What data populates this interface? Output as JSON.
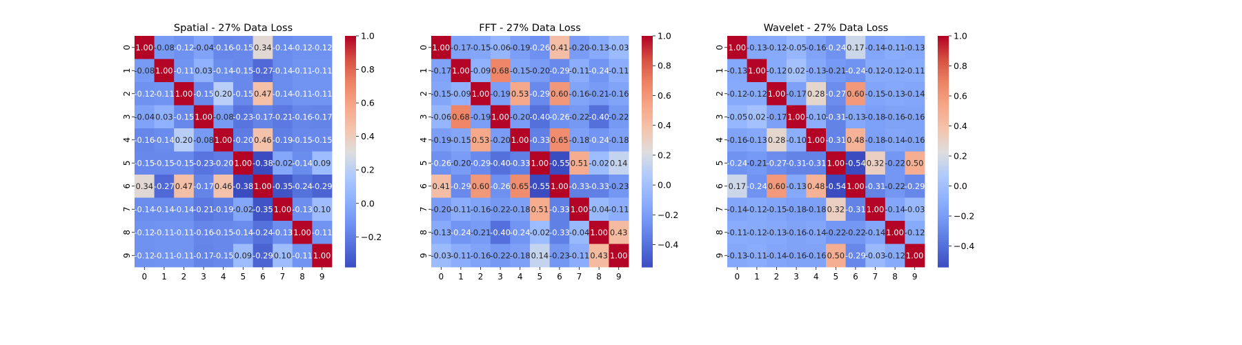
{
  "chart_data": [
    {
      "type": "heatmap",
      "title": "Spatial - 27% Data Loss",
      "x": [
        "0",
        "1",
        "2",
        "3",
        "4",
        "5",
        "6",
        "7",
        "8",
        "9"
      ],
      "y": [
        "0",
        "1",
        "2",
        "3",
        "4",
        "5",
        "6",
        "7",
        "8",
        "9"
      ],
      "values": [
        [
          1.0,
          -0.08,
          -0.12,
          -0.04,
          -0.16,
          -0.15,
          0.34,
          -0.14,
          -0.12,
          -0.12
        ],
        [
          -0.08,
          1.0,
          -0.11,
          0.03,
          -0.14,
          -0.15,
          -0.27,
          -0.14,
          -0.11,
          -0.11
        ],
        [
          -0.12,
          -0.11,
          1.0,
          -0.15,
          0.2,
          -0.15,
          0.47,
          -0.14,
          -0.11,
          -0.11
        ],
        [
          -0.04,
          0.03,
          -0.15,
          1.0,
          -0.08,
          -0.23,
          -0.17,
          -0.21,
          -0.16,
          -0.17
        ],
        [
          -0.16,
          -0.14,
          0.2,
          -0.08,
          1.0,
          -0.2,
          0.46,
          -0.19,
          -0.15,
          -0.15
        ],
        [
          -0.15,
          -0.15,
          -0.15,
          -0.23,
          -0.2,
          1.0,
          -0.38,
          -0.02,
          -0.14,
          0.09
        ],
        [
          0.34,
          -0.27,
          0.47,
          -0.17,
          0.46,
          -0.38,
          1.0,
          -0.35,
          -0.24,
          -0.29
        ],
        [
          -0.14,
          -0.14,
          -0.14,
          -0.21,
          -0.19,
          -0.02,
          -0.35,
          1.0,
          -0.13,
          0.1
        ],
        [
          -0.12,
          -0.11,
          -0.11,
          -0.16,
          -0.15,
          -0.14,
          -0.24,
          -0.13,
          1.0,
          -0.11
        ],
        [
          -0.12,
          -0.11,
          -0.11,
          -0.17,
          -0.15,
          0.09,
          -0.29,
          0.1,
          -0.11,
          1.0
        ]
      ],
      "vmin": -0.38,
      "vmax": 1.0,
      "colorbar_ticks": [
        "1.0",
        "0.8",
        "0.6",
        "0.4",
        "0.2",
        "0.0",
        "−0.2"
      ],
      "colorbar_tick_values": [
        1.0,
        0.8,
        0.6,
        0.4,
        0.2,
        0.0,
        -0.2
      ]
    },
    {
      "type": "heatmap",
      "title": "FFT - 27% Data Loss",
      "x": [
        "0",
        "1",
        "2",
        "3",
        "4",
        "5",
        "6",
        "7",
        "8",
        "9"
      ],
      "y": [
        "0",
        "1",
        "2",
        "3",
        "4",
        "5",
        "6",
        "7",
        "8",
        "9"
      ],
      "values": [
        [
          1.0,
          -0.17,
          -0.15,
          -0.06,
          -0.19,
          -0.26,
          0.41,
          -0.2,
          -0.13,
          -0.03
        ],
        [
          -0.17,
          1.0,
          -0.09,
          0.68,
          -0.15,
          -0.2,
          -0.29,
          -0.11,
          -0.24,
          -0.11
        ],
        [
          -0.15,
          -0.09,
          1.0,
          -0.19,
          0.53,
          -0.29,
          0.6,
          -0.16,
          -0.21,
          -0.16
        ],
        [
          -0.06,
          0.68,
          -0.19,
          1.0,
          -0.2,
          -0.4,
          -0.26,
          -0.22,
          -0.4,
          -0.22
        ],
        [
          -0.19,
          -0.15,
          0.53,
          -0.2,
          1.0,
          -0.33,
          0.65,
          -0.18,
          -0.24,
          -0.18
        ],
        [
          -0.26,
          -0.2,
          -0.29,
          -0.4,
          -0.33,
          1.0,
          -0.55,
          0.51,
          -0.02,
          0.14
        ],
        [
          0.41,
          -0.29,
          0.6,
          -0.26,
          0.65,
          -0.55,
          1.0,
          -0.33,
          -0.33,
          -0.23
        ],
        [
          -0.2,
          -0.11,
          -0.16,
          -0.22,
          -0.18,
          0.51,
          -0.33,
          1.0,
          -0.04,
          -0.11
        ],
        [
          -0.13,
          -0.24,
          -0.21,
          -0.4,
          -0.24,
          -0.02,
          -0.33,
          -0.04,
          1.0,
          0.43
        ],
        [
          -0.03,
          -0.11,
          -0.16,
          -0.22,
          -0.18,
          0.14,
          -0.23,
          -0.11,
          0.43,
          1.0
        ]
      ],
      "vmin": -0.55,
      "vmax": 1.0,
      "colorbar_ticks": [
        "1.0",
        "0.8",
        "0.6",
        "0.4",
        "0.2",
        "0.0",
        "−0.2",
        "−0.4"
      ],
      "colorbar_tick_values": [
        1.0,
        0.8,
        0.6,
        0.4,
        0.2,
        0.0,
        -0.2,
        -0.4
      ]
    },
    {
      "type": "heatmap",
      "title": "Wavelet - 27% Data Loss",
      "x": [
        "0",
        "1",
        "2",
        "3",
        "4",
        "5",
        "6",
        "7",
        "8",
        "9"
      ],
      "y": [
        "0",
        "1",
        "2",
        "3",
        "4",
        "5",
        "6",
        "7",
        "8",
        "9"
      ],
      "values": [
        [
          1.0,
          -0.13,
          -0.12,
          -0.05,
          -0.16,
          -0.24,
          0.17,
          -0.14,
          -0.11,
          -0.13
        ],
        [
          -0.13,
          1.0,
          -0.12,
          0.02,
          -0.13,
          -0.21,
          -0.24,
          -0.12,
          -0.12,
          -0.11
        ],
        [
          -0.12,
          -0.12,
          1.0,
          -0.17,
          0.28,
          -0.27,
          0.6,
          -0.15,
          -0.13,
          -0.14
        ],
        [
          -0.05,
          0.02,
          -0.17,
          1.0,
          -0.1,
          -0.31,
          -0.13,
          -0.18,
          -0.16,
          -0.16
        ],
        [
          -0.16,
          -0.13,
          0.28,
          -0.1,
          1.0,
          -0.31,
          0.48,
          -0.18,
          -0.14,
          -0.16
        ],
        [
          -0.24,
          -0.21,
          -0.27,
          -0.31,
          -0.31,
          1.0,
          -0.54,
          0.32,
          -0.22,
          0.5
        ],
        [
          0.17,
          -0.24,
          0.6,
          -0.13,
          0.48,
          -0.54,
          1.0,
          -0.31,
          -0.22,
          -0.29
        ],
        [
          -0.14,
          -0.12,
          -0.15,
          -0.18,
          -0.18,
          0.32,
          -0.31,
          1.0,
          -0.14,
          -0.03
        ],
        [
          -0.11,
          -0.12,
          -0.13,
          -0.16,
          -0.14,
          -0.22,
          -0.22,
          -0.14,
          1.0,
          -0.12
        ],
        [
          -0.13,
          -0.11,
          -0.14,
          -0.16,
          -0.16,
          0.5,
          -0.29,
          -0.03,
          -0.12,
          1.0
        ]
      ],
      "vmin": -0.54,
      "vmax": 1.0,
      "colorbar_ticks": [
        "1.0",
        "0.8",
        "0.6",
        "0.4",
        "0.2",
        "0.0",
        "−0.2",
        "−0.4"
      ],
      "colorbar_tick_values": [
        1.0,
        0.8,
        0.6,
        0.4,
        0.2,
        0.0,
        -0.2,
        -0.4
      ]
    }
  ],
  "colormap": "coolwarm"
}
